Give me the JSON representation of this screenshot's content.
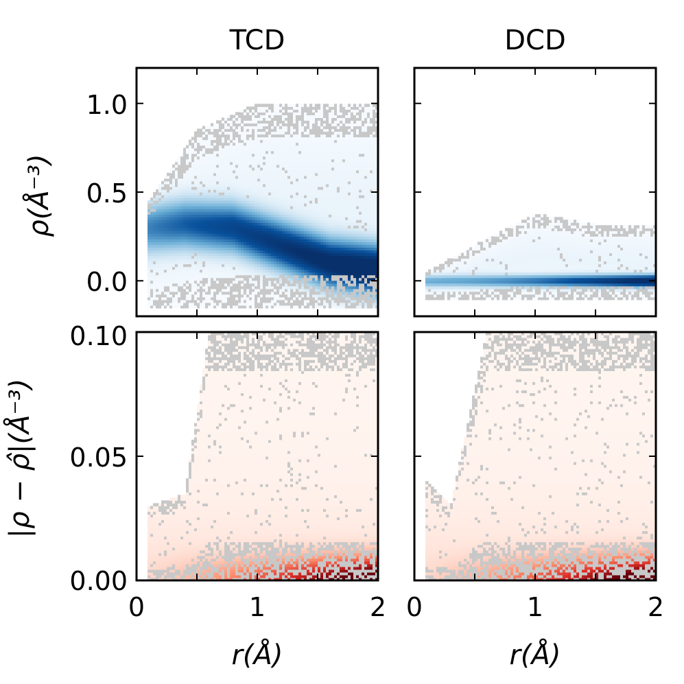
{
  "figure": {
    "description_colors": {
      "blue_scale": [
        "#f7fbff",
        "#6baed6",
        "#08519c",
        "#08306b"
      ],
      "red_scale": [
        "#fff5f0",
        "#fc9272",
        "#de2d26",
        "#67000d"
      ],
      "outlier": "#c8c8c8"
    },
    "panel_titles": [
      "TCD",
      "DCD"
    ]
  },
  "chart_data": [
    {
      "type": "heatmap",
      "id": "tcd-density",
      "title": "TCD",
      "xlabel": "",
      "ylabel": "ρ(Å⁻³)",
      "xlim": [
        0,
        2
      ],
      "ylim": [
        -0.2,
        1.2
      ],
      "xticks": [
        0,
        1,
        2
      ],
      "yticks": [
        0.0,
        0.5,
        1.0
      ],
      "ytick_labels": [
        "0.0",
        "0.5",
        "1.0"
      ],
      "colormap": "Blues",
      "density_ridge": {
        "x": [
          0.1,
          0.4,
          0.8,
          1.2,
          1.6,
          2.0
        ],
        "y": [
          0.3,
          0.32,
          0.3,
          0.2,
          0.1,
          0.06
        ]
      },
      "envelope": {
        "x": [
          0.1,
          0.5,
          1.0,
          1.5,
          2.0
        ],
        "low": [
          -0.15,
          -0.15,
          -0.15,
          -0.15,
          -0.15
        ],
        "high": [
          0.45,
          0.85,
          1.0,
          1.0,
          1.0
        ]
      }
    },
    {
      "type": "heatmap",
      "id": "dcd-density",
      "title": "DCD",
      "xlabel": "",
      "ylabel": "",
      "xlim": [
        0,
        2
      ],
      "ylim": [
        -0.2,
        1.2
      ],
      "xticks": [
        0,
        1,
        2
      ],
      "yticks": [
        0.0,
        0.5,
        1.0
      ],
      "colormap": "Blues",
      "density_ridge": {
        "x": [
          0.1,
          0.5,
          1.0,
          1.5,
          2.0
        ],
        "y": [
          0.0,
          0.0,
          0.0,
          0.0,
          0.0
        ]
      },
      "envelope": {
        "x": [
          0.1,
          0.5,
          1.0,
          1.5,
          2.0
        ],
        "low": [
          -0.1,
          -0.1,
          -0.1,
          -0.1,
          -0.1
        ],
        "high": [
          0.05,
          0.2,
          0.38,
          0.32,
          0.32
        ]
      }
    },
    {
      "type": "heatmap",
      "id": "tcd-error",
      "title": "",
      "xlabel": "r(Å)",
      "ylabel": "|ρ − ρ̂|(Å⁻³)",
      "xlim": [
        0,
        2
      ],
      "ylim": [
        0.0,
        0.1
      ],
      "xticks": [
        0,
        1,
        2
      ],
      "xtick_labels": [
        "0",
        "1",
        "2"
      ],
      "yticks": [
        0.0,
        0.05,
        0.1
      ],
      "ytick_labels": [
        "0.00",
        "0.05",
        "0.10"
      ],
      "colormap": "Reds",
      "envelope": {
        "x": [
          0.1,
          0.4,
          0.6,
          1.0,
          1.5,
          2.0
        ],
        "low": [
          0,
          0,
          0,
          0,
          0,
          0
        ],
        "high": [
          0.03,
          0.035,
          0.1,
          0.1,
          0.1,
          0.1
        ]
      }
    },
    {
      "type": "heatmap",
      "id": "dcd-error",
      "title": "",
      "xlabel": "r(Å)",
      "ylabel": "",
      "xlim": [
        0,
        2
      ],
      "ylim": [
        0.0,
        0.1
      ],
      "xticks": [
        0,
        1,
        2
      ],
      "xtick_labels": [
        "0",
        "1",
        "2"
      ],
      "yticks": [
        0.0,
        0.05,
        0.1
      ],
      "colormap": "Reds",
      "envelope": {
        "x": [
          0.1,
          0.3,
          0.6,
          1.0,
          1.5,
          2.0
        ],
        "low": [
          0,
          0,
          0,
          0,
          0,
          0
        ],
        "high": [
          0.04,
          0.03,
          0.1,
          0.1,
          0.1,
          0.1
        ]
      }
    }
  ]
}
